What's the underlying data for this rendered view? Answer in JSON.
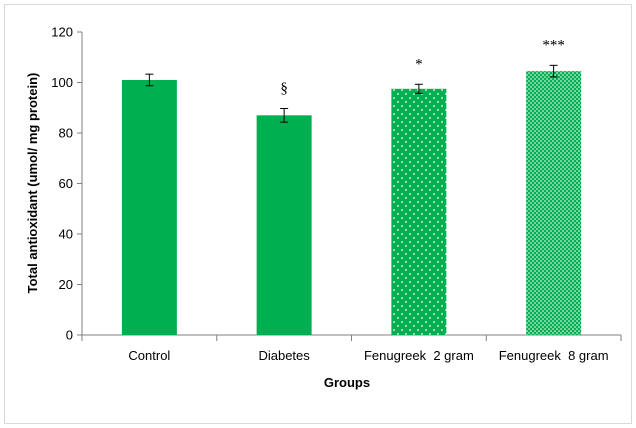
{
  "chart_data": {
    "type": "bar",
    "title": "",
    "xlabel": "Groups",
    "ylabel": "Total antioxidant (umol/ mg protein)",
    "ylim": [
      0,
      120
    ],
    "yticks": [
      0,
      20,
      40,
      60,
      80,
      100,
      120
    ],
    "categories": [
      "Control",
      "Diabetes",
      "Fenugreek  2 gram",
      "Fenugreek  8 gram"
    ],
    "values": [
      101,
      87,
      97.5,
      104.5
    ],
    "errors": [
      2.3,
      2.7,
      1.8,
      2.3
    ],
    "annotations": [
      "",
      "§",
      "*",
      "***"
    ],
    "fills": [
      "solid",
      "solid",
      "dotted",
      "dense-dotted"
    ],
    "grid": false,
    "legend": "none"
  },
  "colors": {
    "bar": "#00b050",
    "axis": "#808080",
    "error_bar": "#000000"
  }
}
